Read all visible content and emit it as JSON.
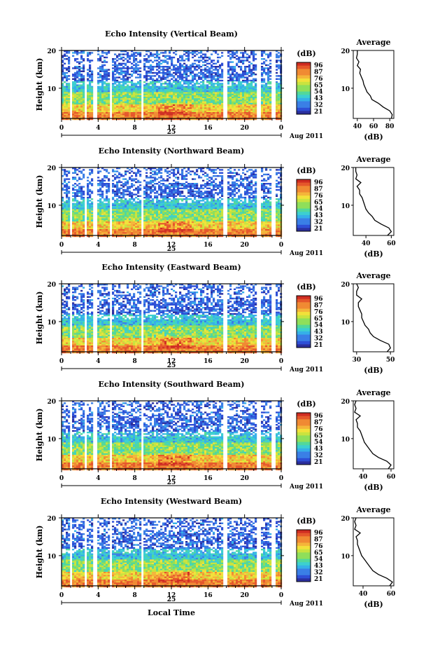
{
  "figure": {
    "local_time_label": "Local Time",
    "date_label": "Aug 2011",
    "day_label": "25",
    "height_label": "Height (km)",
    "colorbar_unit": "(dB)",
    "average_title": "Average",
    "average_xlabel": "(dB)"
  },
  "chart_data": [
    {
      "type": "heatmap",
      "title": "Echo Intensity (Vertical Beam)",
      "ylabel": "Height (km)",
      "xlabel": "",
      "x_ticks": [
        "0",
        "4",
        "8",
        "12",
        "16",
        "20",
        "0"
      ],
      "y_ticks": [
        "20",
        "10"
      ],
      "xlim": [
        0,
        24
      ],
      "ylim": [
        2,
        20
      ],
      "colorbar_ticks": [
        "96",
        "87",
        "76",
        "65",
        "54",
        "43",
        "32",
        "21"
      ],
      "average_profile": {
        "title": "Average",
        "xlabel": "(dB)",
        "x_ticks": [
          "40",
          "60",
          "80"
        ],
        "xlim": [
          35,
          85
        ],
        "heights": [
          2,
          3,
          4,
          5,
          6,
          7,
          8,
          9,
          10,
          11,
          12,
          13,
          14,
          15,
          16,
          17,
          18,
          19,
          20
        ],
        "values": [
          82,
          83,
          80,
          72,
          66,
          58,
          56,
          52,
          50,
          48,
          47,
          45,
          43,
          44,
          40,
          42,
          39,
          40,
          40
        ]
      }
    },
    {
      "type": "heatmap",
      "title": "Echo Intensity (Northward Beam)",
      "ylabel": "Height (km)",
      "xlabel": "",
      "x_ticks": [
        "0",
        "4",
        "8",
        "12",
        "16",
        "20",
        "0"
      ],
      "y_ticks": [
        "20",
        "10"
      ],
      "xlim": [
        0,
        24
      ],
      "ylim": [
        2,
        20
      ],
      "colorbar_ticks": [
        "96",
        "87",
        "76",
        "65",
        "54",
        "43",
        "32",
        "21"
      ],
      "average_profile": {
        "title": "Average",
        "xlabel": "(dB)",
        "x_ticks": [
          "40",
          "60"
        ],
        "xlim": [
          30,
          62
        ],
        "heights": [
          2,
          3,
          4,
          5,
          6,
          7,
          8,
          9,
          10,
          11,
          12,
          13,
          14,
          15,
          16,
          17,
          18,
          19,
          20
        ],
        "values": [
          57,
          60,
          58,
          52,
          47,
          45,
          42,
          40,
          39,
          38,
          37,
          35,
          35,
          33,
          36,
          32,
          33,
          32,
          32
        ]
      }
    },
    {
      "type": "heatmap",
      "title": "Echo Intensity (Eastward Beam)",
      "ylabel": "Height (km)",
      "xlabel": "",
      "x_ticks": [
        "0",
        "4",
        "8",
        "12",
        "16",
        "20",
        "0"
      ],
      "y_ticks": [
        "20",
        "10"
      ],
      "xlim": [
        0,
        24
      ],
      "ylim": [
        2,
        20
      ],
      "colorbar_ticks": [
        "96",
        "87",
        "76",
        "65",
        "54",
        "43",
        "32",
        "21"
      ],
      "average_profile": {
        "title": "Average",
        "xlabel": "(dB)",
        "x_ticks": [
          "30",
          "50"
        ],
        "xlim": [
          28,
          52
        ],
        "heights": [
          2,
          3,
          4,
          5,
          6,
          7,
          8,
          9,
          10,
          11,
          12,
          13,
          14,
          15,
          16,
          17,
          18,
          19,
          20
        ],
        "values": [
          48,
          50,
          49,
          44,
          40,
          38,
          37,
          35,
          34,
          33,
          33,
          32,
          31,
          31,
          33,
          30,
          30,
          31,
          30
        ]
      }
    },
    {
      "type": "heatmap",
      "title": "Echo Intensity (Southward Beam)",
      "ylabel": "Height (km)",
      "xlabel": "",
      "x_ticks": [
        "0",
        "4",
        "8",
        "12",
        "16",
        "20",
        "0"
      ],
      "y_ticks": [
        "20",
        "10"
      ],
      "xlim": [
        0,
        24
      ],
      "ylim": [
        2,
        20
      ],
      "colorbar_ticks": [
        "96",
        "87",
        "76",
        "65",
        "54",
        "43",
        "32",
        "21"
      ],
      "average_profile": {
        "title": "Average",
        "xlabel": "(dB)",
        "x_ticks": [
          "40",
          "60"
        ],
        "xlim": [
          33,
          62
        ],
        "heights": [
          2,
          3,
          4,
          5,
          6,
          7,
          8,
          9,
          10,
          11,
          12,
          13,
          14,
          15,
          16,
          17,
          18,
          19,
          20
        ],
        "values": [
          58,
          60,
          57,
          51,
          47,
          45,
          43,
          41,
          40,
          39,
          38,
          36,
          36,
          35,
          38,
          34,
          35,
          34,
          35
        ]
      }
    },
    {
      "type": "heatmap",
      "title": "Echo Intensity (Westward Beam)",
      "ylabel": "Height (km)",
      "xlabel": "Local Time",
      "x_ticks": [
        "0",
        "4",
        "8",
        "12",
        "16",
        "20",
        "0"
      ],
      "y_ticks": [
        "20",
        "10"
      ],
      "xlim": [
        0,
        24
      ],
      "ylim": [
        2,
        20
      ],
      "colorbar_ticks": [
        "96",
        "87",
        "76",
        "65",
        "54",
        "43",
        "32",
        "21"
      ],
      "average_profile": {
        "title": "Average",
        "xlabel": "(dB)",
        "x_ticks": [
          "40",
          "60"
        ],
        "xlim": [
          33,
          62
        ],
        "heights": [
          2,
          3,
          4,
          5,
          6,
          7,
          8,
          9,
          10,
          11,
          12,
          13,
          14,
          15,
          16,
          17,
          18,
          19,
          20
        ],
        "values": [
          59,
          61,
          57,
          51,
          47,
          45,
          43,
          41,
          39,
          38,
          37,
          36,
          36,
          35,
          38,
          34,
          35,
          34,
          35
        ]
      }
    }
  ]
}
